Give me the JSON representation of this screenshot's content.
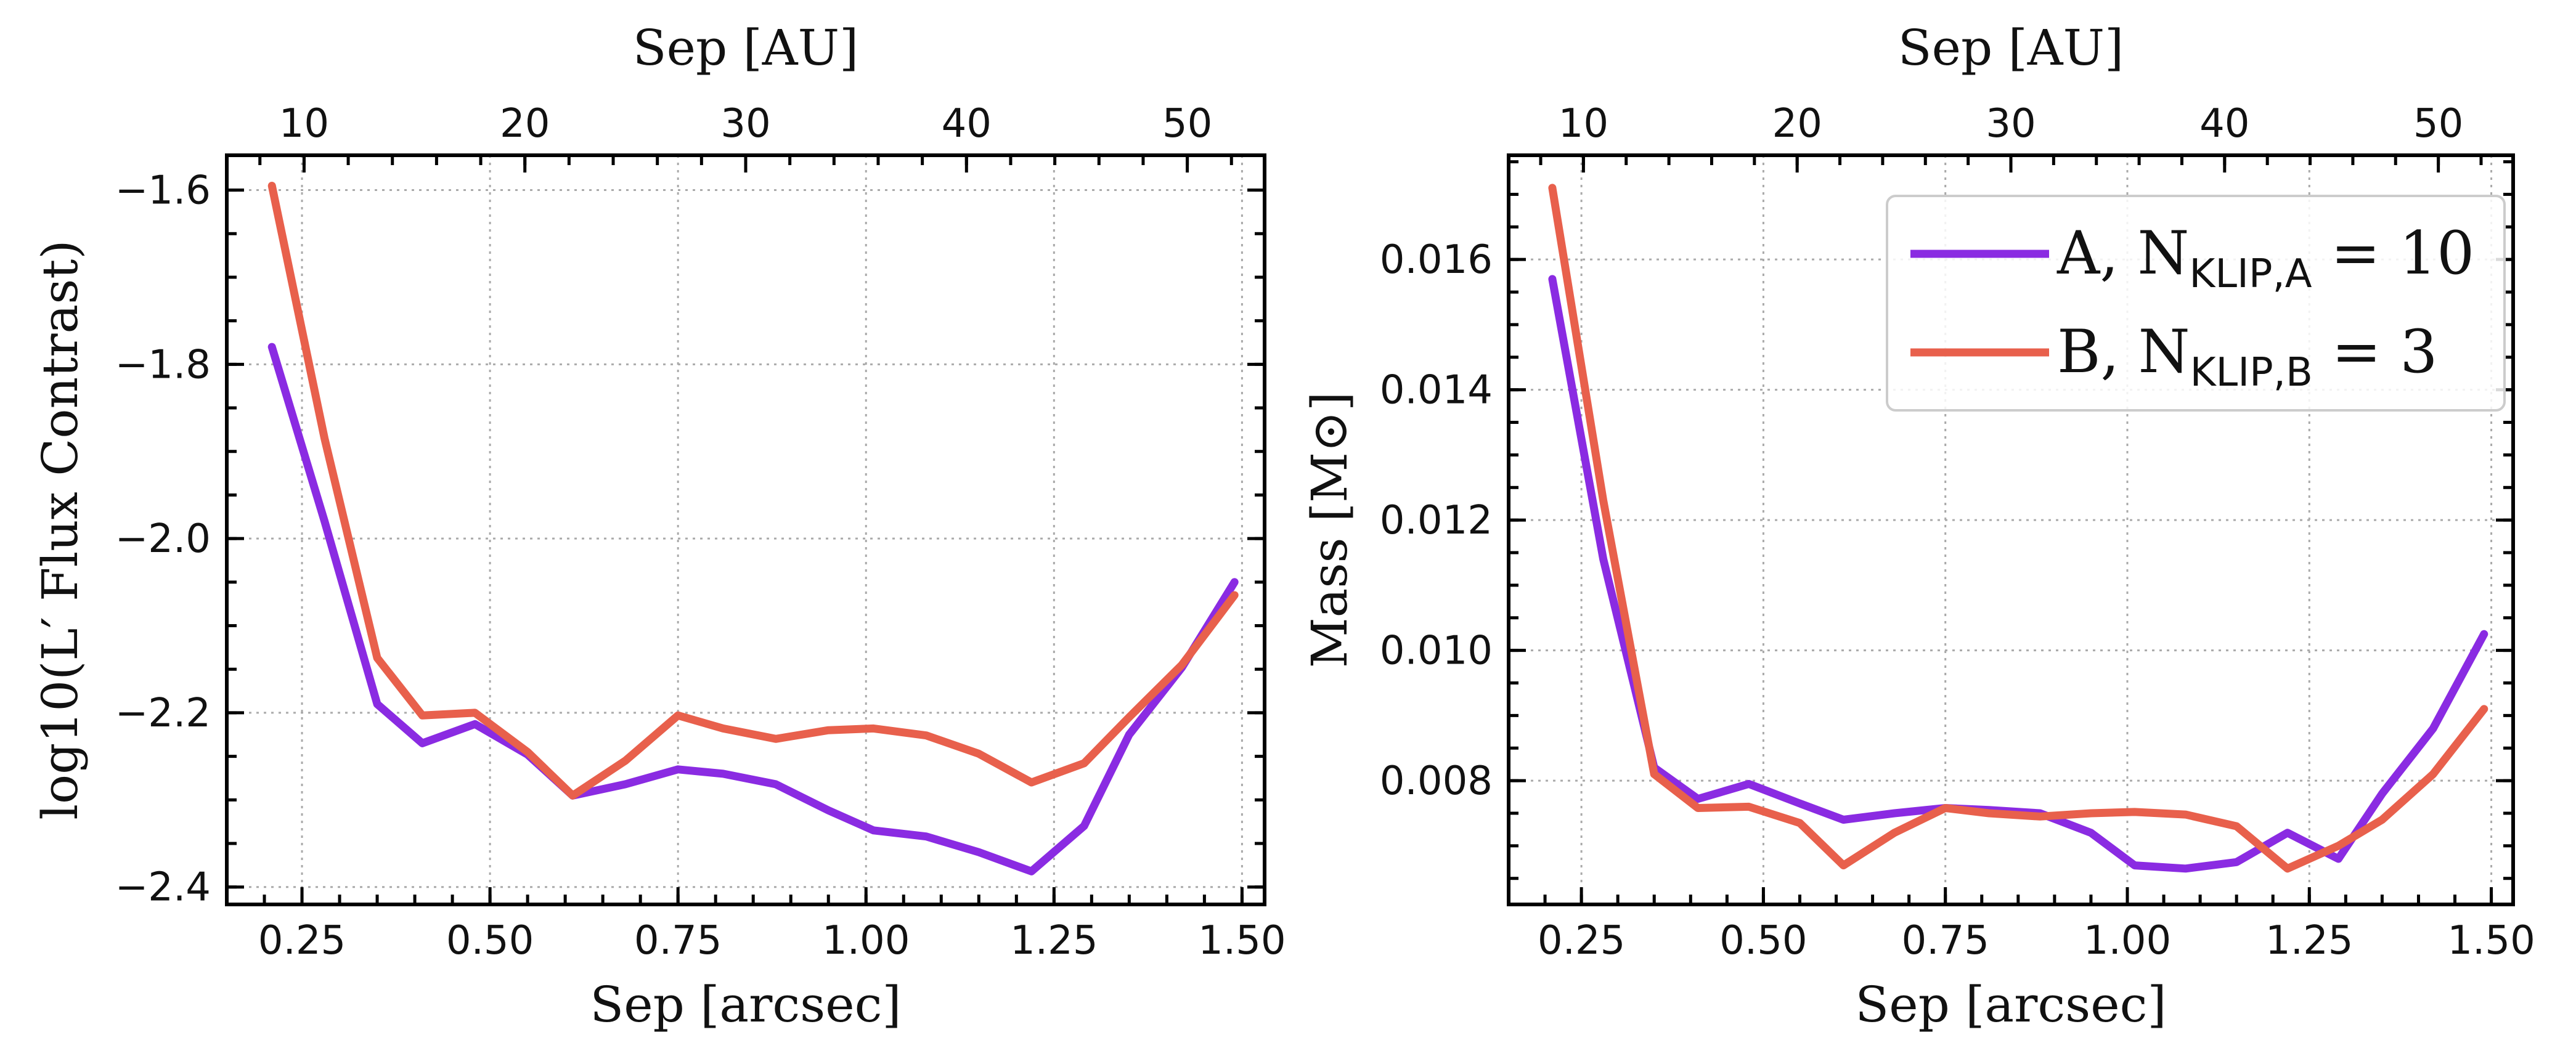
{
  "chart_data": [
    {
      "type": "line",
      "xlabel": "Sep [arcsec]",
      "ylabel": "log10(L′ Flux Contrast)",
      "top_xlabel": "Sep [AU]",
      "xlim": [
        0.15,
        1.53
      ],
      "ylim": [
        -2.42,
        -1.56
      ],
      "top_xlim": [
        6.5,
        53.5
      ],
      "xticks": [
        "0.25",
        "0.50",
        "0.75",
        "1.00",
        "1.25",
        "1.50"
      ],
      "yticks": [
        "−1.6",
        "−1.8",
        "−2.0",
        "−2.2",
        "−2.4"
      ],
      "top_xticks": [
        "10",
        "20",
        "30",
        "40",
        "50"
      ],
      "grid": true,
      "x": [
        0.21,
        0.28,
        0.35,
        0.41,
        0.48,
        0.55,
        0.61,
        0.68,
        0.75,
        0.81,
        0.88,
        0.95,
        1.01,
        1.08,
        1.15,
        1.22,
        1.29,
        1.35,
        1.42,
        1.49
      ],
      "series": [
        {
          "name": "A",
          "color": "#8a2be2",
          "values": [
            -1.78,
            -1.98,
            -2.19,
            -2.235,
            -2.213,
            -2.248,
            -2.295,
            -2.282,
            -2.265,
            -2.27,
            -2.282,
            -2.312,
            -2.335,
            -2.342,
            -2.36,
            -2.382,
            -2.33,
            -2.225,
            -2.148,
            -2.05
          ]
        },
        {
          "name": "B",
          "color": "#e8604c",
          "values": [
            -1.595,
            -1.885,
            -2.137,
            -2.203,
            -2.2,
            -2.245,
            -2.295,
            -2.255,
            -2.203,
            -2.218,
            -2.23,
            -2.22,
            -2.218,
            -2.226,
            -2.247,
            -2.28,
            -2.258,
            -2.205,
            -2.145,
            -2.065
          ]
        }
      ]
    },
    {
      "type": "line",
      "xlabel": "Sep [arcsec]",
      "ylabel": "Mass [M⊙]",
      "top_xlabel": "Sep [AU]",
      "xlim": [
        0.15,
        1.53
      ],
      "ylim": [
        0.0061,
        0.0176
      ],
      "top_xlim": [
        6.5,
        53.5
      ],
      "xticks": [
        "0.25",
        "0.50",
        "0.75",
        "1.00",
        "1.25",
        "1.50"
      ],
      "yticks": [
        "0.016",
        "0.014",
        "0.012",
        "0.010",
        "0.008"
      ],
      "top_xticks": [
        "10",
        "20",
        "30",
        "40",
        "50"
      ],
      "grid": true,
      "legend_position": "top-right",
      "x": [
        0.21,
        0.28,
        0.35,
        0.41,
        0.48,
        0.55,
        0.61,
        0.68,
        0.75,
        0.81,
        0.88,
        0.95,
        1.01,
        1.08,
        1.15,
        1.22,
        1.29,
        1.35,
        1.42,
        1.49
      ],
      "series": [
        {
          "name": "A",
          "legend_base": "A, N",
          "legend_sub": "KLIP,A",
          "legend_tail": " = 10",
          "color": "#8a2be2",
          "values": [
            0.0157,
            0.0114,
            0.0082,
            0.00772,
            0.00795,
            0.00765,
            0.0074,
            0.0075,
            0.00758,
            0.00755,
            0.0075,
            0.0072,
            0.0067,
            0.00665,
            0.00675,
            0.0072,
            0.0068,
            0.0078,
            0.0088,
            0.01025
          ]
        },
        {
          "name": "B",
          "legend_base": "B, N",
          "legend_sub": "KLIP,B",
          "legend_tail": " = 3",
          "color": "#e8604c",
          "values": [
            0.0171,
            0.0123,
            0.0081,
            0.00758,
            0.0076,
            0.00735,
            0.0067,
            0.0072,
            0.00758,
            0.0075,
            0.00745,
            0.0075,
            0.00752,
            0.00748,
            0.0073,
            0.00665,
            0.007,
            0.0074,
            0.0081,
            0.0091
          ]
        }
      ]
    }
  ]
}
